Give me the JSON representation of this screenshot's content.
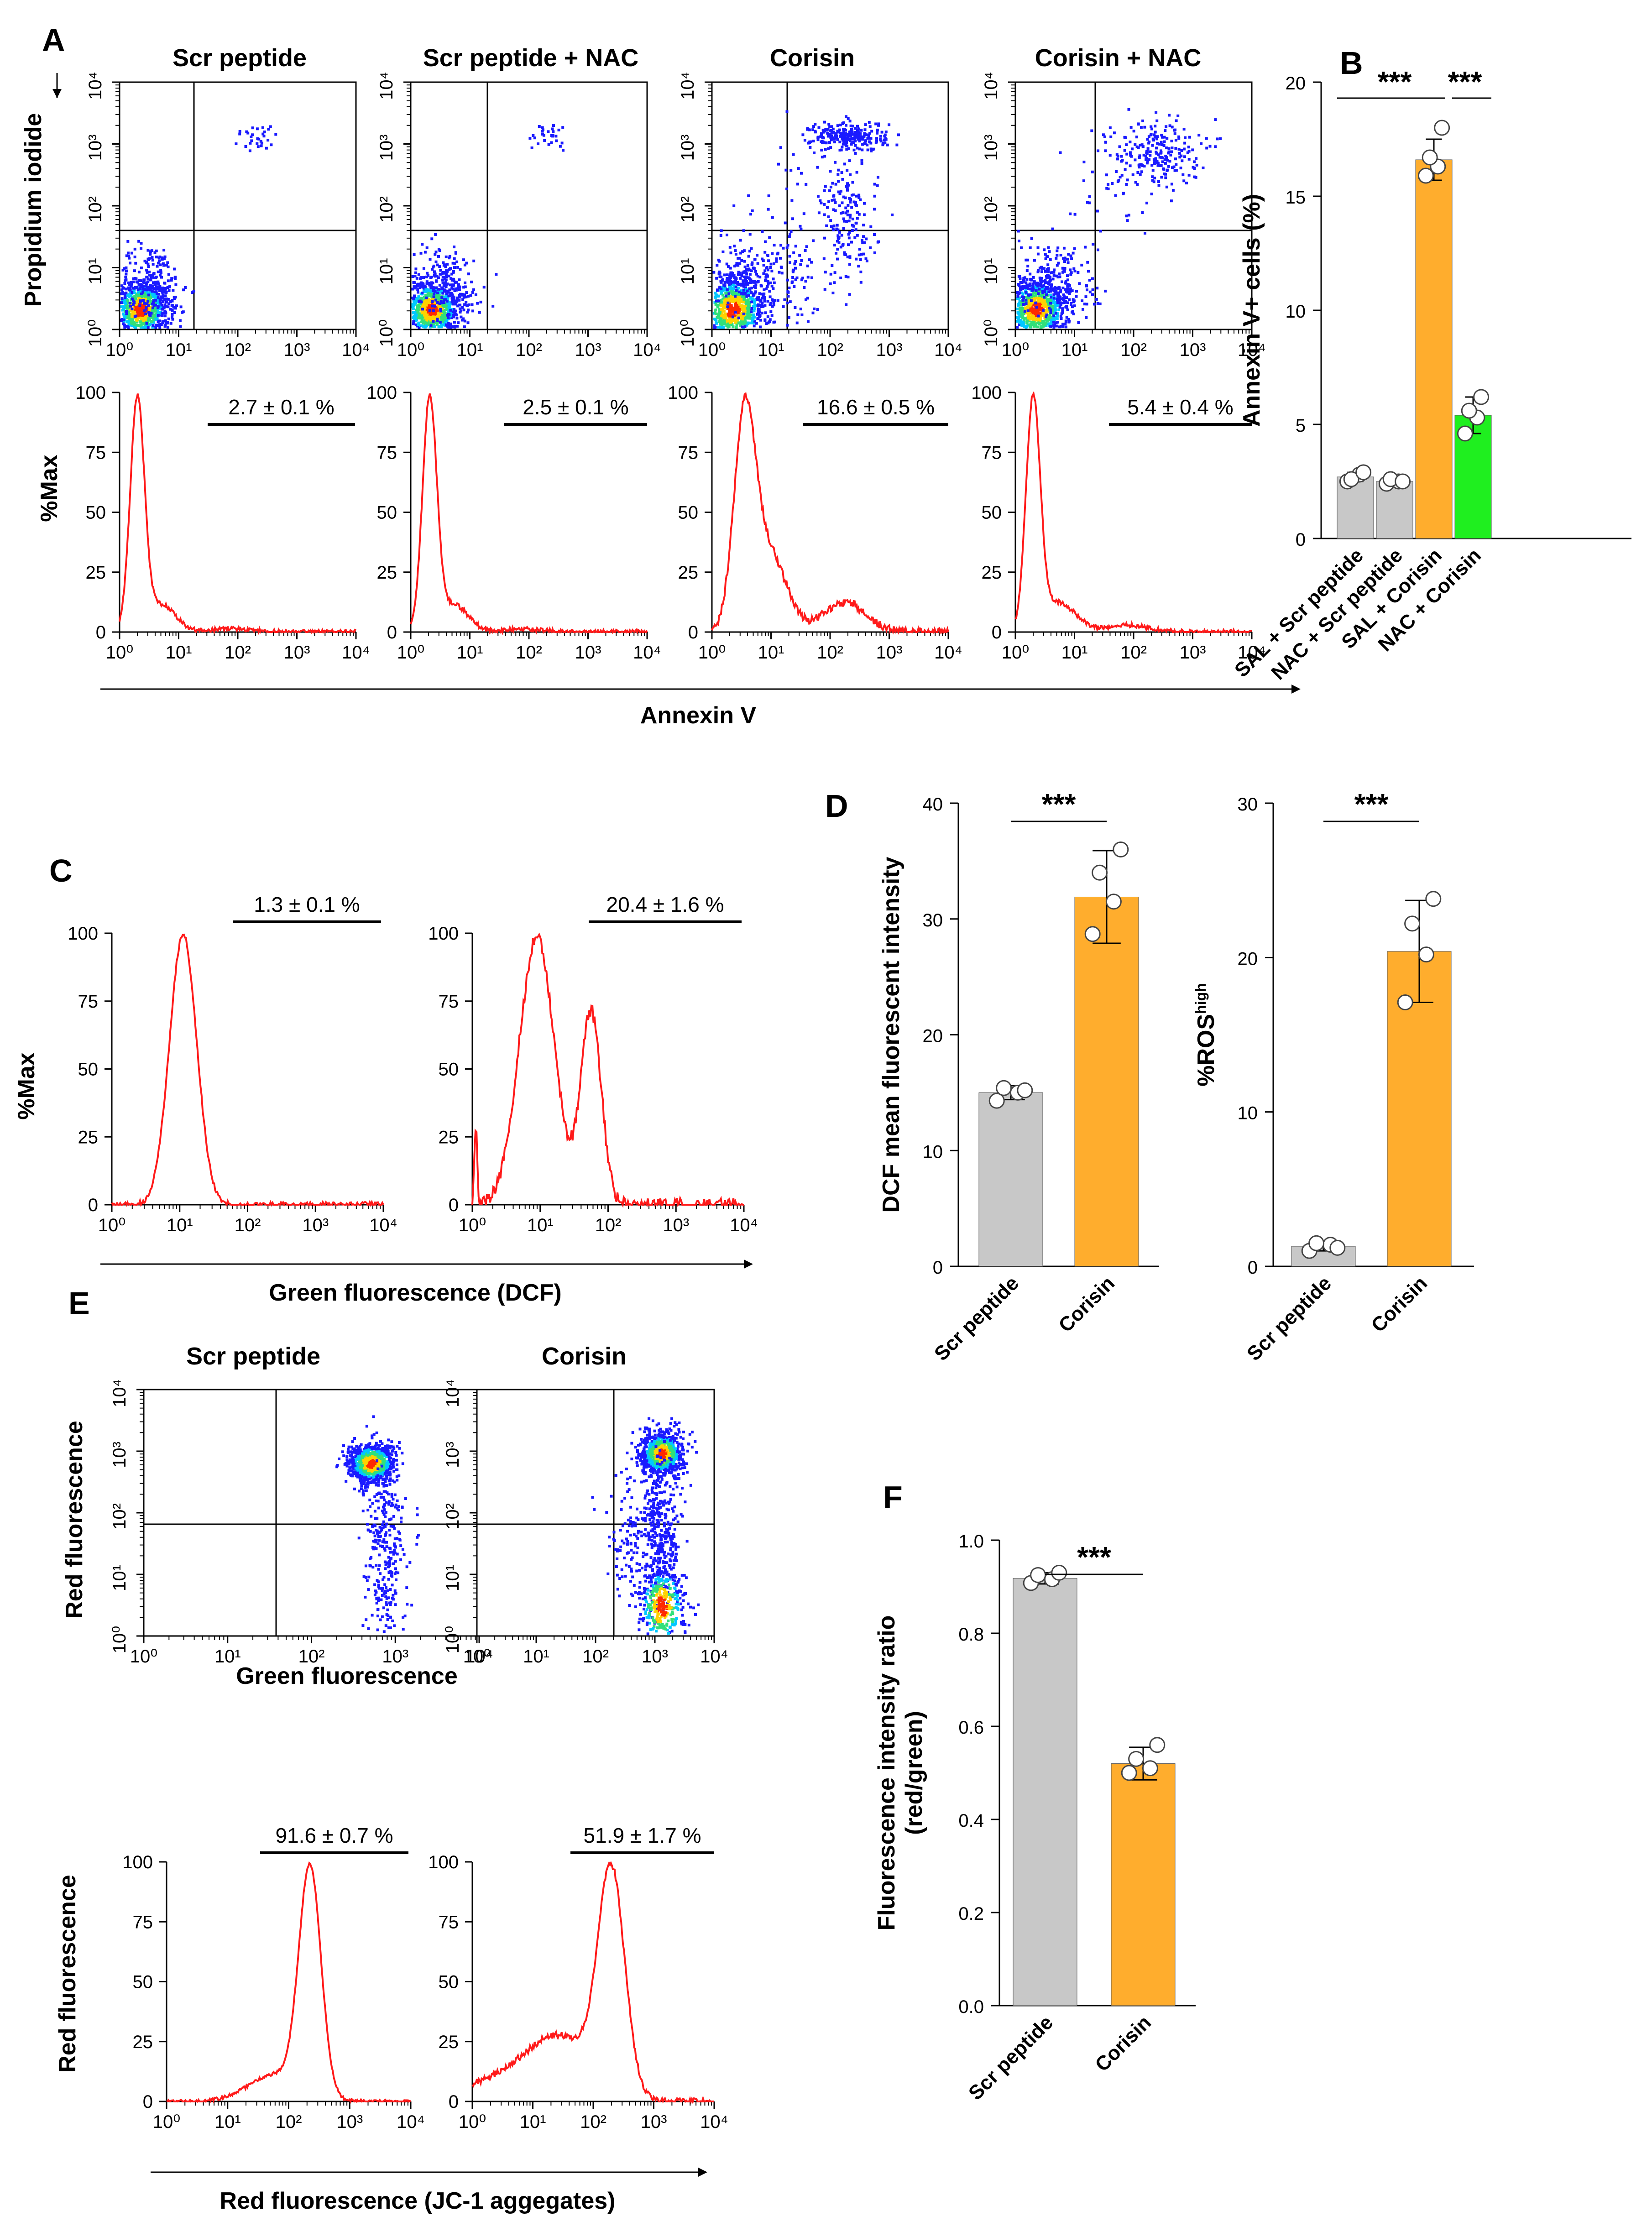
{
  "colors": {
    "grey_bar": "#c8c8c8",
    "orange_bar": "#ffad2d",
    "green_bar": "#1fef1f",
    "histogram_line": "#ff1a1a",
    "dot_blue": "#1a1aff"
  },
  "panels": {
    "A": "A",
    "B": "B",
    "C": "C",
    "D": "D",
    "E": "E",
    "F": "F"
  },
  "panel_A": {
    "dot_titles": [
      "Scr peptide",
      "Scr peptide + NAC",
      "Corisin",
      "Corisin + NAC"
    ],
    "dot_ylabel": "Propidium iodide",
    "hist_ylabel": "%Max",
    "xlabel": "Annexin V",
    "percentages": [
      "2.7 ± 0.1 %",
      "2.5 ± 0.1 %",
      "16.6 ± 0.5 %",
      "5.4 ± 0.4 %"
    ],
    "log_ticks": [
      "10⁰",
      "10¹",
      "10²",
      "10³",
      "10⁴"
    ],
    "hist_ticks": [
      "0",
      "25",
      "50",
      "75",
      "100"
    ]
  },
  "panel_C": {
    "ylabel": "%Max",
    "xlabel": "Green fluorescence (DCF)",
    "percentages": [
      "1.3 ± 0.1 %",
      "20.4 ± 1.6 %"
    ]
  },
  "panel_E": {
    "dot_titles": [
      "Scr peptide",
      "Corisin"
    ],
    "dot_ylabel": "Red fluorescence",
    "dot_xlabel": "Green fluorescence",
    "hist_ylabel": "Red fluorescence",
    "hist_xlabel": "Red fluorescence (JC-1 aggegates)",
    "percentages": [
      "91.6 ± 0.7 %",
      "51.9 ± 1.7 %"
    ]
  },
  "chart_data": [
    {
      "id": "B",
      "type": "bar",
      "categories": [
        "SAL + Scr peptide",
        "NAC + Scr peptide",
        "SAL + Corisin",
        "NAC + Corisin"
      ],
      "values": [
        2.7,
        2.5,
        16.6,
        5.4
      ],
      "errors": [
        0.2,
        0.15,
        0.9,
        0.8
      ],
      "points": [
        [
          2.5,
          2.8,
          2.6,
          2.9
        ],
        [
          2.4,
          2.5,
          2.6,
          2.5
        ],
        [
          15.9,
          16.3,
          16.7,
          18.0
        ],
        [
          4.6,
          5.3,
          5.6,
          6.2
        ]
      ],
      "colors": [
        "#c8c8c8",
        "#c8c8c8",
        "#ffad2d",
        "#1fef1f"
      ],
      "ylabel": "Annexin V+ cells (%)",
      "ylim": [
        0,
        20
      ],
      "yticks": [
        "0",
        "5",
        "10",
        "15",
        "20"
      ],
      "significance": [
        "***",
        "***"
      ]
    },
    {
      "id": "D1",
      "type": "bar",
      "categories": [
        "Scr peptide",
        "Corisin"
      ],
      "values": [
        15.0,
        31.9
      ],
      "errors": [
        0.6,
        4.0
      ],
      "points": [
        [
          14.3,
          15.0,
          15.4,
          15.2
        ],
        [
          28.7,
          31.5,
          34.0,
          36.0
        ]
      ],
      "colors": [
        "#c8c8c8",
        "#ffad2d"
      ],
      "ylabel": "DCF mean fluorescent intensity",
      "ylim": [
        0,
        40
      ],
      "yticks": [
        "0",
        "10",
        "20",
        "30",
        "40"
      ],
      "significance": [
        "***"
      ]
    },
    {
      "id": "D2",
      "type": "bar",
      "categories": [
        "Scr peptide",
        "Corisin"
      ],
      "values": [
        1.3,
        20.4
      ],
      "errors": [
        0.3,
        3.3
      ],
      "points": [
        [
          1.0,
          1.4,
          1.5,
          1.2
        ],
        [
          17.1,
          20.2,
          22.2,
          23.8
        ]
      ],
      "colors": [
        "#c8c8c8",
        "#ffad2d"
      ],
      "ylabel": "%ROS",
      "ylabel_sup": "high",
      "ylim": [
        0,
        30
      ],
      "yticks": [
        "0",
        "10",
        "20",
        "30"
      ],
      "significance": [
        "***"
      ]
    },
    {
      "id": "F",
      "type": "bar",
      "categories": [
        "Scr peptide",
        "Corisin"
      ],
      "values": [
        0.918,
        0.52
      ],
      "errors": [
        0.012,
        0.035
      ],
      "points": [
        [
          0.908,
          0.916,
          0.925,
          0.93
        ],
        [
          0.5,
          0.51,
          0.53,
          0.56
        ]
      ],
      "colors": [
        "#c8c8c8",
        "#ffad2d"
      ],
      "ylabel": "Fluorescence intensity ratio (red/green)",
      "ylim": [
        0,
        1.0
      ],
      "yticks": [
        "0.0",
        "0.2",
        "0.4",
        "0.6",
        "0.8",
        "1.0"
      ],
      "significance": [
        "***"
      ]
    }
  ]
}
